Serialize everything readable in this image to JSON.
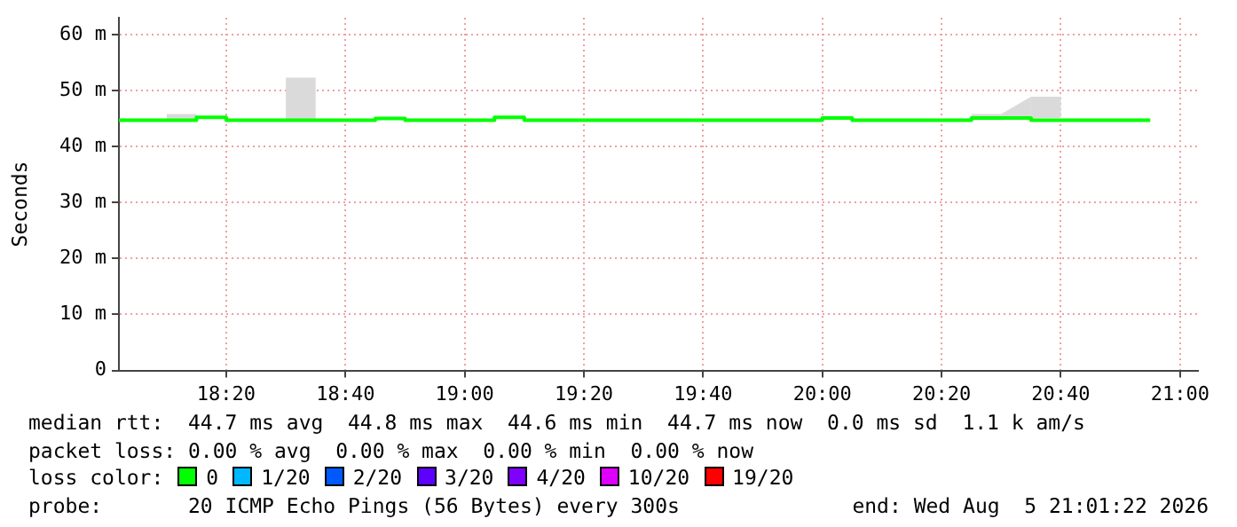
{
  "chart_data": {
    "type": "step",
    "ylabel": "Seconds",
    "legend_title": "loss color:",
    "legend": "bottom",
    "grid": true,
    "annotations": [
      "median rtt:  44.7 ms avg  44.8 ms max  44.6 ms min  44.7 ms now  0.0 ms sd  1.1 k am/s",
      "packet loss: 0.00 % avg  0.00 % max  0.00 % min  0.00 % now",
      "probe:       20 ICMP Echo Pings (56 Bytes) every 300s",
      "end: Wed Aug  5 21:01:22 2026"
    ],
    "x": [
      18.0333,
      18.0833,
      18.1667,
      18.25,
      18.3333,
      18.4167,
      18.5,
      18.5833,
      18.6667,
      18.75,
      18.8333,
      18.9167,
      19.0,
      19.0833,
      19.1667,
      19.25,
      19.3333,
      19.4167,
      19.5,
      19.5833,
      19.6667,
      19.75,
      19.8333,
      19.9167,
      20.0,
      20.0833,
      20.1667,
      20.25,
      20.3333,
      20.4167,
      20.5,
      20.5833,
      20.6667,
      20.75,
      20.8333,
      20.9167
    ],
    "xlim": [
      18.0333,
      21.05
    ],
    "xticks": [
      {
        "value": 18.3333,
        "label": "18:20"
      },
      {
        "value": 18.6667,
        "label": "18:40"
      },
      {
        "value": 19.0,
        "label": "19:00"
      },
      {
        "value": 19.3333,
        "label": "19:20"
      },
      {
        "value": 19.6667,
        "label": "19:40"
      },
      {
        "value": 20.0,
        "label": "20:00"
      },
      {
        "value": 20.3333,
        "label": "20:20"
      },
      {
        "value": 20.6667,
        "label": "20:40"
      },
      {
        "value": 21.0,
        "label": "21:00"
      }
    ],
    "ylim": [
      0,
      63
    ],
    "yticks": [
      0,
      {
        "value": 10,
        "label": "10 m"
      },
      {
        "value": 20,
        "label": "20 m"
      },
      {
        "value": 30,
        "label": "30 m"
      },
      {
        "value": 40,
        "label": "40 m"
      },
      {
        "value": 50,
        "label": "50 m"
      },
      {
        "value": 60,
        "label": "60 m"
      }
    ],
    "series": [
      {
        "name": "0",
        "color": "#00ff00",
        "values": [
          44.7,
          44.7,
          44.7,
          44.7,
          45.2,
          44.7,
          44.7,
          44.7,
          44.7,
          44.7,
          45.0,
          44.7,
          44.7,
          44.7,
          45.2,
          44.7,
          44.7,
          44.7,
          44.7,
          44.7,
          44.7,
          44.7,
          44.7,
          44.7,
          44.7,
          45.1,
          44.7,
          44.7,
          44.7,
          44.7,
          45.1,
          45.1,
          44.7,
          44.7,
          44.7,
          44.7
        ],
        "lower": [
          null,
          null,
          44.7,
          44.7,
          null,
          null,
          44.7,
          44.7,
          null,
          null,
          null,
          null,
          null,
          null,
          null,
          null,
          null,
          null,
          null,
          null,
          null,
          null,
          null,
          null,
          null,
          null,
          null,
          null,
          null,
          44.7,
          44.7,
          45.1,
          45.1,
          null,
          null,
          null
        ],
        "upper": [
          null,
          null,
          45.8,
          45.8,
          null,
          null,
          52.3,
          52.3,
          null,
          null,
          null,
          null,
          null,
          null,
          null,
          null,
          null,
          null,
          null,
          null,
          null,
          null,
          null,
          null,
          null,
          null,
          null,
          null,
          null,
          45.8,
          45.8,
          48.9,
          48.9,
          null,
          null,
          null
        ]
      },
      {
        "name": "1/20",
        "color": "#00b8ff",
        "values": [
          null,
          null,
          null,
          null,
          null,
          null,
          null,
          null,
          null,
          null,
          null,
          null,
          null,
          null,
          null,
          null,
          null,
          null,
          null,
          null,
          null,
          null,
          null,
          null,
          null,
          null,
          null,
          null,
          null,
          null,
          null,
          null,
          null,
          null,
          null,
          null
        ]
      },
      {
        "name": "2/20",
        "color": "#0059ff",
        "values": [
          null,
          null,
          null,
          null,
          null,
          null,
          null,
          null,
          null,
          null,
          null,
          null,
          null,
          null,
          null,
          null,
          null,
          null,
          null,
          null,
          null,
          null,
          null,
          null,
          null,
          null,
          null,
          null,
          null,
          null,
          null,
          null,
          null,
          null,
          null,
          null
        ]
      },
      {
        "name": "3/20",
        "color": "#5e00ff",
        "values": [
          null,
          null,
          null,
          null,
          null,
          null,
          null,
          null,
          null,
          null,
          null,
          null,
          null,
          null,
          null,
          null,
          null,
          null,
          null,
          null,
          null,
          null,
          null,
          null,
          null,
          null,
          null,
          null,
          null,
          null,
          null,
          null,
          null,
          null,
          null,
          null
        ]
      },
      {
        "name": "4/20",
        "color": "#7e00ff",
        "values": [
          null,
          null,
          null,
          null,
          null,
          null,
          null,
          null,
          null,
          null,
          null,
          null,
          null,
          null,
          null,
          null,
          null,
          null,
          null,
          null,
          null,
          null,
          null,
          null,
          null,
          null,
          null,
          null,
          null,
          null,
          null,
          null,
          null,
          null,
          null,
          null
        ]
      },
      {
        "name": "10/20",
        "color": "#dd00ff",
        "values": [
          null,
          null,
          null,
          null,
          null,
          null,
          null,
          null,
          null,
          null,
          null,
          null,
          null,
          null,
          null,
          null,
          null,
          null,
          null,
          null,
          null,
          null,
          null,
          null,
          null,
          null,
          null,
          null,
          null,
          null,
          null,
          null,
          null,
          null,
          null,
          null
        ]
      },
      {
        "name": "19/20",
        "color": "#ff0000",
        "values": [
          null,
          null,
          null,
          null,
          null,
          null,
          null,
          null,
          null,
          null,
          null,
          null,
          null,
          null,
          null,
          null,
          null,
          null,
          null,
          null,
          null,
          null,
          null,
          null,
          null,
          null,
          null,
          null,
          null,
          null,
          null,
          null,
          null,
          null,
          null,
          null
        ]
      }
    ]
  }
}
